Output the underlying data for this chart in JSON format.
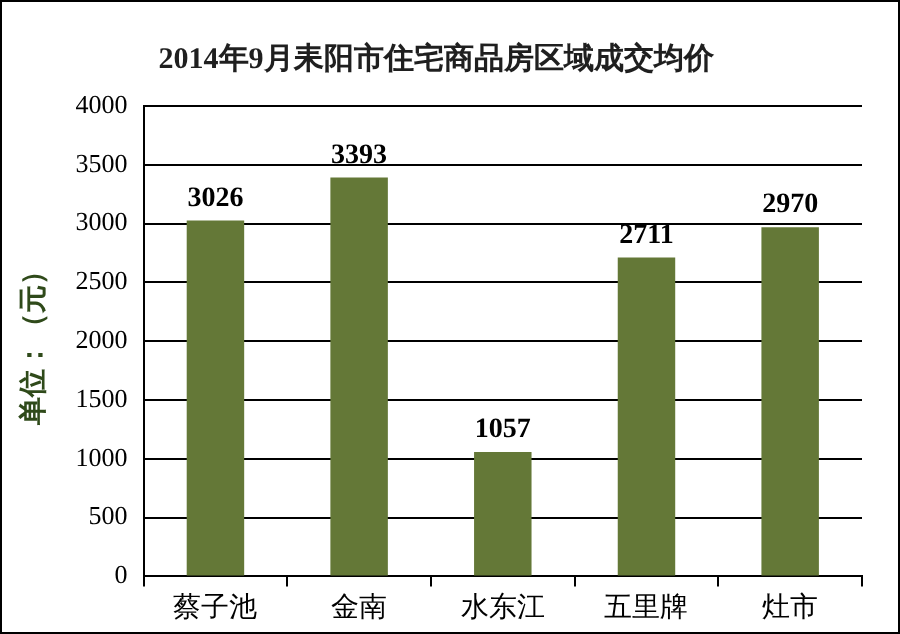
{
  "chart_data": {
    "type": "bar",
    "title": "2014年9月耒阳市住宅商品房区域成交均价",
    "ylabel": "单位：（元）",
    "categories": [
      "蔡子池",
      "金南",
      "水东江",
      "五里牌",
      "灶市"
    ],
    "values": [
      3026,
      3393,
      1057,
      2711,
      2970
    ],
    "color": "#647837",
    "ylim": [
      0,
      4000
    ],
    "yticks": [
      0,
      500,
      1000,
      1500,
      2000,
      2500,
      3000,
      3500,
      4000
    ],
    "grid": "y",
    "data_labels": true
  }
}
